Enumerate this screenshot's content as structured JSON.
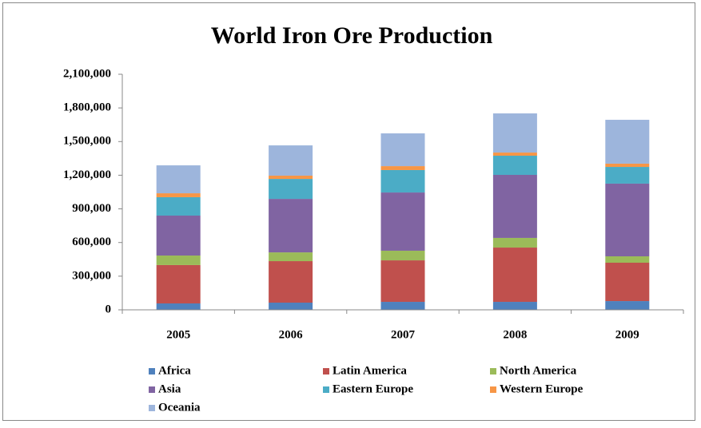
{
  "chart_data": {
    "type": "stacked_bar",
    "title": "World Iron Ore Production",
    "categories": [
      "2005",
      "2006",
      "2007",
      "2008",
      "2009"
    ],
    "series": [
      {
        "name": "Africa",
        "color": "#4f81bd",
        "values": [
          57000,
          64000,
          71000,
          71000,
          78000
        ]
      },
      {
        "name": "Latin America",
        "color": "#c0504d",
        "values": [
          342000,
          370000,
          370000,
          484000,
          342000
        ]
      },
      {
        "name": "North America",
        "color": "#9bbb59",
        "values": [
          85000,
          78000,
          86000,
          86000,
          57000
        ]
      },
      {
        "name": "Asia",
        "color": "#8064a2",
        "values": [
          356000,
          477000,
          519000,
          562000,
          648000
        ]
      },
      {
        "name": "Eastern Europe",
        "color": "#4bacc6",
        "values": [
          164000,
          178000,
          200000,
          171000,
          149000
        ]
      },
      {
        "name": "Western Europe",
        "color": "#f79646",
        "values": [
          35000,
          29000,
          35000,
          28000,
          29000
        ]
      },
      {
        "name": "Oceania",
        "color": "#9db5dc",
        "values": [
          249000,
          270000,
          292000,
          349000,
          391000
        ]
      }
    ],
    "ylim": [
      0,
      2100000
    ],
    "yticks": [
      0,
      {
        "value": 300000,
        "label": "300,000"
      },
      {
        "value": 600000,
        "label": "600,000"
      },
      {
        "value": 900000,
        "label": "900,000"
      },
      {
        "value": 1200000,
        "label": "1,200,000"
      },
      {
        "value": 1500000,
        "label": "1,500,000"
      },
      {
        "value": 1800000,
        "label": "1,800,000"
      },
      {
        "value": 2100000,
        "label": "2,100,000"
      }
    ],
    "legend": "bottom"
  }
}
